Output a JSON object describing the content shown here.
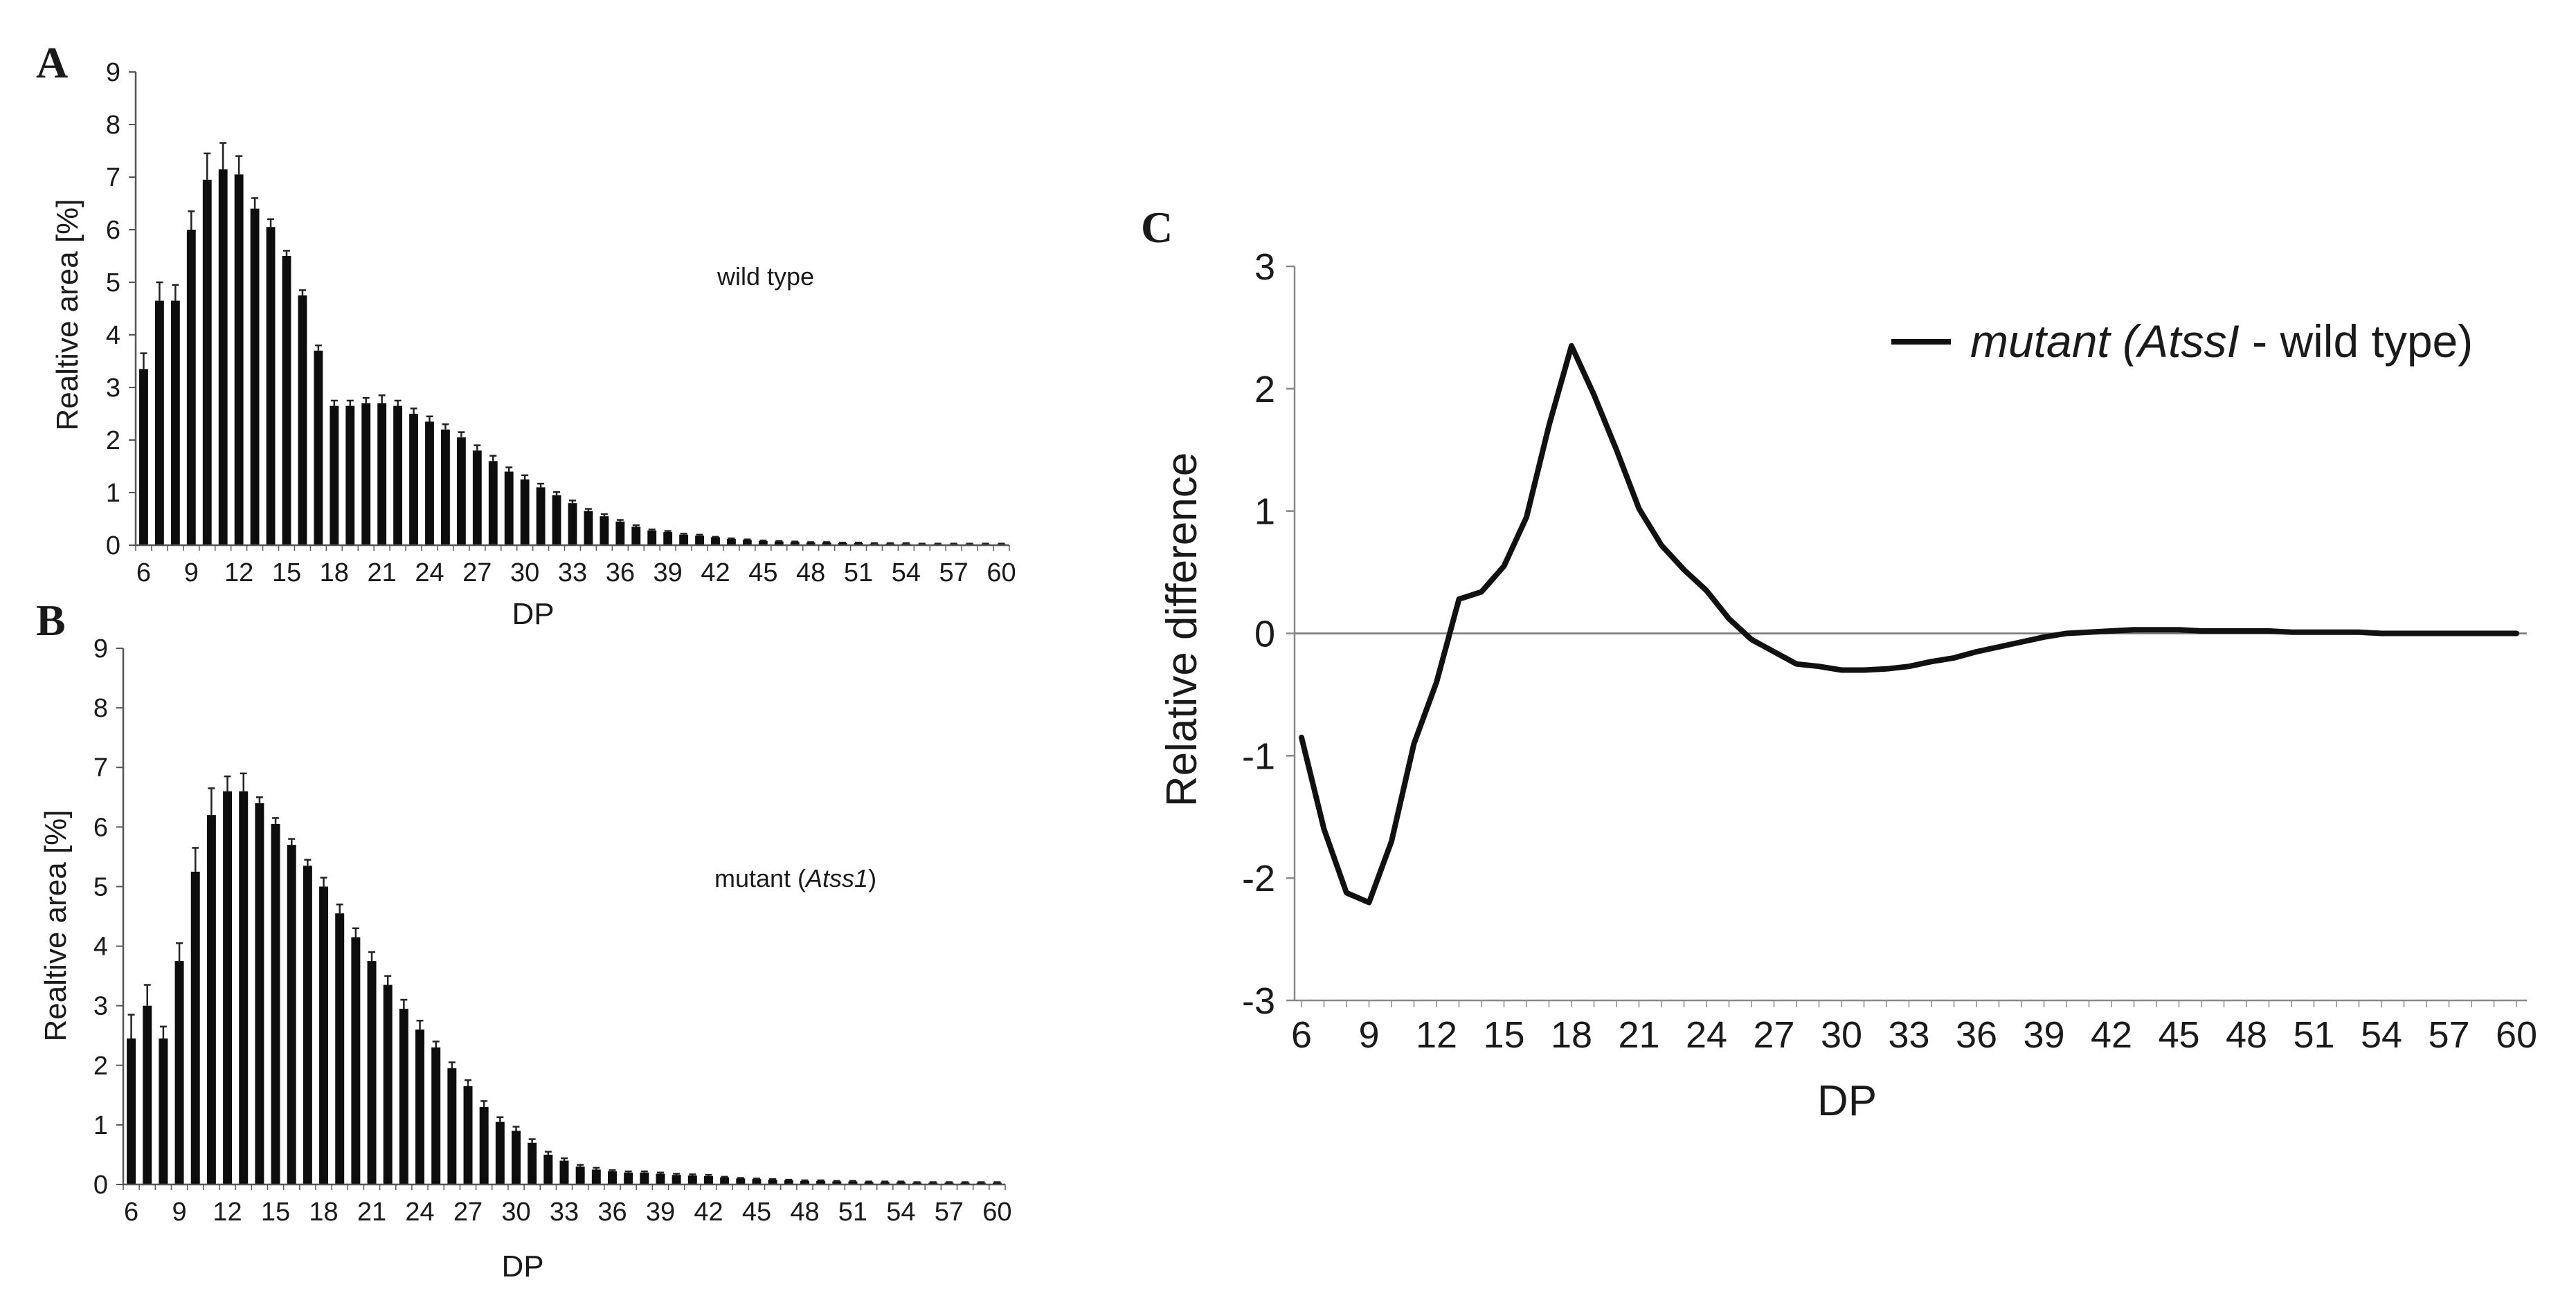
{
  "panels": {
    "a": "A",
    "b": "B",
    "c": "C"
  },
  "chart_data": [
    {
      "id": "a",
      "type": "bar",
      "ylabel": "Realtive area [%]",
      "xlabel": "DP",
      "annotation": "wild type",
      "ylim": [
        0,
        9
      ],
      "yticks": [
        0,
        1,
        2,
        3,
        4,
        5,
        6,
        7,
        8,
        9
      ],
      "xticks": [
        6,
        9,
        12,
        15,
        18,
        21,
        24,
        27,
        30,
        33,
        36,
        39,
        42,
        45,
        48,
        51,
        54,
        57,
        60
      ],
      "x": [
        6,
        7,
        8,
        9,
        10,
        11,
        12,
        13,
        14,
        15,
        16,
        17,
        18,
        19,
        20,
        21,
        22,
        23,
        24,
        25,
        26,
        27,
        28,
        29,
        30,
        31,
        32,
        33,
        34,
        35,
        36,
        37,
        38,
        39,
        40,
        41,
        42,
        43,
        44,
        45,
        46,
        47,
        48,
        49,
        50,
        51,
        52,
        53,
        54,
        55,
        56,
        57,
        58,
        59,
        60
      ],
      "values": [
        3.35,
        4.65,
        4.65,
        6.0,
        6.95,
        7.15,
        7.05,
        6.4,
        6.05,
        5.5,
        4.75,
        3.7,
        2.65,
        2.65,
        2.7,
        2.7,
        2.65,
        2.5,
        2.35,
        2.2,
        2.05,
        1.8,
        1.6,
        1.4,
        1.25,
        1.1,
        0.95,
        0.8,
        0.65,
        0.55,
        0.45,
        0.35,
        0.28,
        0.25,
        0.2,
        0.18,
        0.15,
        0.12,
        0.1,
        0.08,
        0.07,
        0.06,
        0.05,
        0.05,
        0.04,
        0.04,
        0.03,
        0.03,
        0.03,
        0.02,
        0.02,
        0.02,
        0.02,
        0.02,
        0.02
      ],
      "errors": [
        0.3,
        0.35,
        0.3,
        0.35,
        0.5,
        0.5,
        0.35,
        0.2,
        0.15,
        0.1,
        0.1,
        0.1,
        0.1,
        0.1,
        0.1,
        0.15,
        0.1,
        0.1,
        0.1,
        0.1,
        0.1,
        0.1,
        0.1,
        0.08,
        0.08,
        0.07,
        0.06,
        0.05,
        0.04,
        0.04,
        0.03,
        0.03,
        0.02,
        0.02,
        0.02,
        0.02,
        0.01,
        0.01,
        0.01,
        0.01,
        0.01,
        0.01,
        0.01,
        0.01,
        0.01,
        0.01,
        0.01,
        0.01,
        0.01,
        0.01,
        0.01,
        0.01,
        0.01,
        0.01,
        0.01
      ]
    },
    {
      "id": "b",
      "type": "bar",
      "ylabel": "Realtive area [%]",
      "xlabel": "DP",
      "annotation_prefix": "mutant (",
      "annotation_italic": "Atss1",
      "annotation_suffix": ")",
      "ylim": [
        0,
        9
      ],
      "yticks": [
        0,
        1,
        2,
        3,
        4,
        5,
        6,
        7,
        8,
        9
      ],
      "xticks": [
        6,
        9,
        12,
        15,
        18,
        21,
        24,
        27,
        30,
        33,
        36,
        39,
        42,
        45,
        48,
        51,
        54,
        57,
        60
      ],
      "x": [
        6,
        7,
        8,
        9,
        10,
        11,
        12,
        13,
        14,
        15,
        16,
        17,
        18,
        19,
        20,
        21,
        22,
        23,
        24,
        25,
        26,
        27,
        28,
        29,
        30,
        31,
        32,
        33,
        34,
        35,
        36,
        37,
        38,
        39,
        40,
        41,
        42,
        43,
        44,
        45,
        46,
        47,
        48,
        49,
        50,
        51,
        52,
        53,
        54,
        55,
        56,
        57,
        58,
        59,
        60
      ],
      "values": [
        2.45,
        3.0,
        2.45,
        3.75,
        5.25,
        6.2,
        6.6,
        6.6,
        6.4,
        6.05,
        5.7,
        5.35,
        5.0,
        4.55,
        4.15,
        3.75,
        3.35,
        2.95,
        2.6,
        2.3,
        1.95,
        1.65,
        1.3,
        1.05,
        0.9,
        0.7,
        0.5,
        0.4,
        0.3,
        0.25,
        0.22,
        0.2,
        0.2,
        0.18,
        0.16,
        0.15,
        0.14,
        0.12,
        0.1,
        0.09,
        0.08,
        0.07,
        0.06,
        0.06,
        0.05,
        0.05,
        0.04,
        0.04,
        0.04,
        0.03,
        0.03,
        0.03,
        0.03,
        0.03,
        0.03
      ],
      "errors": [
        0.4,
        0.35,
        0.2,
        0.3,
        0.4,
        0.45,
        0.25,
        0.3,
        0.1,
        0.1,
        0.1,
        0.1,
        0.15,
        0.15,
        0.15,
        0.15,
        0.15,
        0.15,
        0.15,
        0.1,
        0.1,
        0.1,
        0.1,
        0.08,
        0.07,
        0.06,
        0.05,
        0.04,
        0.03,
        0.03,
        0.02,
        0.02,
        0.02,
        0.02,
        0.02,
        0.02,
        0.02,
        0.01,
        0.01,
        0.01,
        0.01,
        0.01,
        0.01,
        0.01,
        0.01,
        0.01,
        0.01,
        0.01,
        0.01,
        0.01,
        0.01,
        0.01,
        0.01,
        0.01,
        0.01
      ]
    },
    {
      "id": "c",
      "type": "line",
      "ylabel": "Relative difference",
      "xlabel": "DP",
      "ylim": [
        -3,
        3
      ],
      "yticks": [
        -3,
        -2,
        -1,
        0,
        1,
        2,
        3
      ],
      "xlim": [
        6,
        60
      ],
      "xticks": [
        6,
        9,
        12,
        15,
        18,
        21,
        24,
        27,
        30,
        33,
        36,
        39,
        42,
        45,
        48,
        51,
        54,
        57,
        60
      ],
      "zero_line": true,
      "series": [
        {
          "name_italic_1": "mutant (Atss",
          "name_italic_2": "I",
          "name_regular": " - wild type)",
          "x": [
            6,
            7,
            8,
            9,
            10,
            11,
            12,
            13,
            14,
            15,
            16,
            17,
            18,
            19,
            20,
            21,
            22,
            23,
            24,
            25,
            26,
            27,
            28,
            29,
            30,
            31,
            32,
            33,
            34,
            35,
            36,
            37,
            38,
            39,
            40,
            41,
            42,
            43,
            44,
            45,
            46,
            47,
            48,
            49,
            50,
            51,
            52,
            53,
            54,
            55,
            56,
            57,
            58,
            59,
            60
          ],
          "y": [
            -0.85,
            -1.6,
            -2.12,
            -2.2,
            -1.7,
            -0.9,
            -0.4,
            0.28,
            0.34,
            0.55,
            0.95,
            1.7,
            2.35,
            1.95,
            1.5,
            1.02,
            0.72,
            0.52,
            0.35,
            0.12,
            -0.05,
            -0.15,
            -0.25,
            -0.27,
            -0.3,
            -0.3,
            -0.29,
            -0.27,
            -0.23,
            -0.2,
            -0.15,
            -0.11,
            -0.07,
            -0.03,
            0.0,
            0.01,
            0.02,
            0.03,
            0.03,
            0.03,
            0.02,
            0.02,
            0.02,
            0.02,
            0.01,
            0.01,
            0.01,
            0.01,
            0.0,
            0.0,
            0.0,
            0.0,
            0.0,
            0.0,
            0.0
          ]
        }
      ]
    }
  ]
}
